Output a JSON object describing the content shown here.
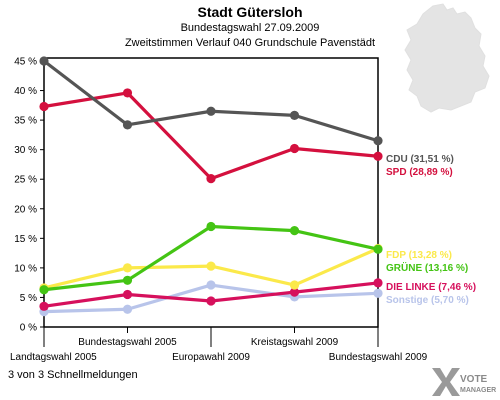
{
  "header": {
    "title": "Stadt Gütersloh",
    "subtitle": "Bundestagswahl 27.09.2009",
    "subtitle2": "Zweitstimmen Verlauf 040 Grundschule Pavenstädt"
  },
  "footer": {
    "text": "3 von 3 Schnellmeldungen"
  },
  "logo": {
    "line1": "VOTE",
    "line2": "MANAGER"
  },
  "chart_data": {
    "type": "line",
    "title": "Stadt Gütersloh",
    "xlabel": "",
    "ylabel": "",
    "categories": [
      "Landtagswahl 2005",
      "Bundestagswahl 2005",
      "Europawahl 2009",
      "Kreistagswahl 2009",
      "Bundestagswahl 2009"
    ],
    "ylim": [
      0,
      45
    ],
    "yticks": [
      "0 %",
      "5 %",
      "10 %",
      "15 %",
      "20 %",
      "25 %",
      "30 %",
      "35 %",
      "40 %",
      "45 %"
    ],
    "grid": false,
    "series": [
      {
        "name": "CDU",
        "label": "CDU (31,51 %)",
        "color": "#555555",
        "values": [
          45.0,
          34.2,
          36.5,
          35.8,
          31.51
        ]
      },
      {
        "name": "SPD",
        "label": "SPD (28,89 %)",
        "color": "#d4103e",
        "values": [
          37.3,
          39.6,
          25.1,
          30.2,
          28.89
        ]
      },
      {
        "name": "FDP",
        "label": "FDP (13,28 %)",
        "color": "#fbe94a",
        "values": [
          6.6,
          10.0,
          10.3,
          7.1,
          13.28
        ]
      },
      {
        "name": "GRÜNE",
        "label": "GRÜNE (13,16 %)",
        "color": "#44c414",
        "values": [
          6.3,
          7.9,
          17.0,
          16.3,
          13.16
        ]
      },
      {
        "name": "DIE LINKE",
        "label": "DIE LINKE (7,46 %)",
        "color": "#d6105c",
        "values": [
          3.5,
          5.5,
          4.4,
          5.9,
          7.46
        ]
      },
      {
        "name": "Sonstige",
        "label": "Sonstige (5,70 %)",
        "color": "#b8c4ea",
        "values": [
          2.6,
          3.0,
          7.1,
          5.1,
          5.7
        ]
      }
    ]
  }
}
